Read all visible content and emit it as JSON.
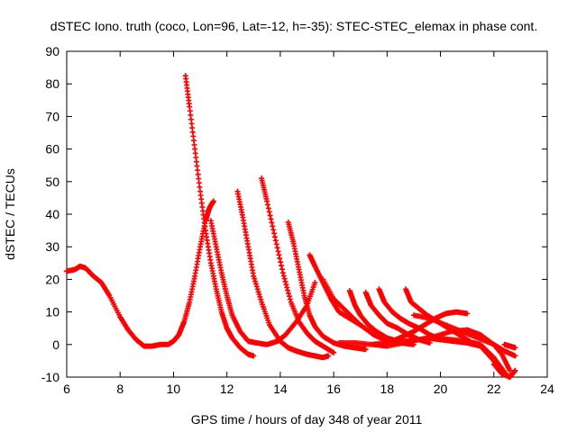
{
  "chart_data": {
    "type": "scatter",
    "title": "dSTEC Iono. truth (coco, Lon=96, Lat=-12, h=-35): STEC-STEC_elemax in phase cont.",
    "xlabel": "GPS time / hours of day 348 of year 2011",
    "ylabel": "dSTEC  / TECUs",
    "xlim": [
      6,
      24
    ],
    "ylim": [
      -10,
      90
    ],
    "xticks": [
      "6",
      "8",
      "10",
      "12",
      "14",
      "16",
      "18",
      "20",
      "22",
      "24"
    ],
    "yticks": [
      "-10",
      "0",
      "10",
      "20",
      "30",
      "40",
      "50",
      "60",
      "70",
      "80",
      "90"
    ],
    "grid": false,
    "legend": "none",
    "marker": "plus",
    "series_color": "#ff0000",
    "series": [
      {
        "x": [
          6.0,
          6.3,
          6.5,
          6.7,
          7.0,
          7.3,
          7.6,
          8.0,
          8.3,
          8.6,
          8.9,
          9.2,
          9.5,
          9.8,
          10.0,
          10.2,
          10.4,
          10.6,
          10.8,
          11.0,
          11.2,
          11.35,
          11.5
        ],
        "y": [
          22.5,
          23,
          24,
          23.5,
          21,
          19,
          15,
          8.5,
          4.5,
          1.5,
          -0.5,
          -0.5,
          0,
          0,
          1,
          3,
          7,
          13,
          21,
          30,
          38,
          42,
          44
        ]
      },
      {
        "x": [
          10.45,
          10.6,
          10.8,
          11.0,
          11.2,
          11.4,
          11.6,
          11.8,
          12.0,
          12.2,
          12.5,
          12.8,
          13.0
        ],
        "y": [
          82.5,
          73,
          60,
          47,
          35,
          25,
          17,
          10,
          5,
          2,
          -1,
          -3,
          -3.5
        ]
      },
      {
        "x": [
          11.4,
          11.6,
          11.8,
          12.0,
          12.2,
          12.5,
          12.8,
          13.1,
          13.5,
          13.9,
          14.2,
          14.6,
          15.0,
          15.3
        ],
        "y": [
          38,
          30,
          22,
          15,
          9,
          4,
          1,
          0.5,
          0,
          1,
          3,
          7,
          12,
          19
        ]
      },
      {
        "x": [
          12.4,
          12.6,
          12.8,
          13.0,
          13.3,
          13.6,
          14.0,
          14.3,
          14.6,
          15.0,
          15.3,
          15.6,
          15.8
        ],
        "y": [
          47,
          39,
          30,
          21,
          13,
          6,
          1,
          -1,
          -2,
          -3,
          -3.5,
          -4,
          -3.5
        ]
      },
      {
        "x": [
          13.3,
          13.5,
          13.8,
          14.1,
          14.4,
          14.7,
          15.0,
          15.3,
          15.6,
          16.0
        ],
        "y": [
          51,
          44,
          33,
          22,
          13,
          7,
          3.5,
          1,
          -0.5,
          -2.5
        ]
      },
      {
        "x": [
          14.3,
          14.5,
          14.7,
          14.9,
          15.1,
          15.3,
          15.6,
          16.0,
          16.4,
          16.8,
          17.2
        ],
        "y": [
          37.5,
          31,
          23,
          15,
          9,
          5.5,
          2.5,
          0.5,
          -0.5,
          -1,
          -1.5
        ]
      },
      {
        "x": [
          15.1,
          15.3,
          15.6,
          15.9,
          16.2,
          16.6,
          17.0,
          17.5,
          18.0
        ],
        "y": [
          27.5,
          24,
          19,
          14,
          10,
          8,
          6,
          3,
          1
        ]
      },
      {
        "x": [
          15.6,
          16.0,
          16.5,
          17.0,
          17.5,
          18.0,
          18.5,
          19.0
        ],
        "y": [
          20,
          14,
          10,
          6,
          3,
          1.5,
          0.5,
          0
        ]
      },
      {
        "x": [
          16.6,
          16.8,
          17.0,
          17.3,
          17.6,
          18.0,
          18.4,
          18.8
        ],
        "y": [
          16.5,
          12,
          9,
          6,
          4,
          2,
          1,
          0.5
        ]
      },
      {
        "x": [
          17.2,
          17.4,
          17.7,
          18.0,
          18.4,
          18.8,
          19.2,
          19.6
        ],
        "y": [
          16,
          12,
          9,
          6.5,
          5,
          3,
          1.5,
          0.5
        ]
      },
      {
        "x": [
          17.7,
          17.9,
          18.2,
          18.5,
          18.8,
          19.2,
          19.6,
          20.0
        ],
        "y": [
          17,
          13,
          10,
          8,
          6.5,
          5,
          3,
          1.5
        ]
      },
      {
        "x": [
          18.7,
          18.9,
          19.2,
          19.5,
          19.9,
          20.3,
          20.7,
          21.1
        ],
        "y": [
          17,
          13,
          11,
          9,
          7,
          5,
          3,
          1
        ]
      },
      {
        "x": [
          18.2,
          18.6,
          19.0,
          19.4,
          19.8,
          20.2,
          20.6,
          21.0
        ],
        "y": [
          1,
          2.5,
          4,
          6,
          8,
          9.5,
          10,
          9.5
        ]
      },
      {
        "x": [
          16.2,
          16.8,
          17.4,
          18.0,
          18.6,
          19.2,
          19.8,
          20.4,
          21.0,
          21.5,
          22.0,
          22.3,
          22.6
        ],
        "y": [
          0.5,
          0.5,
          0,
          0.5,
          1,
          1.5,
          2.5,
          4,
          4.5,
          3,
          0,
          -3,
          -8
        ]
      },
      {
        "x": [
          17.5,
          18.0,
          18.6,
          19.2,
          19.8,
          20.4,
          21.0,
          21.5,
          22.0,
          22.4
        ],
        "y": [
          0,
          -0.5,
          0.5,
          1.5,
          2,
          1.5,
          1,
          0,
          -4,
          -8.5
        ]
      },
      {
        "x": [
          19.5,
          20.0,
          20.5,
          21.0,
          21.5,
          22.0,
          22.3,
          22.6
        ],
        "y": [
          2,
          1.5,
          1,
          0.5,
          -0.5,
          -5,
          -8.5,
          -10
        ]
      },
      {
        "x": [
          19.0,
          19.6,
          20.2,
          20.8,
          21.4,
          22.0,
          22.4,
          22.8
        ],
        "y": [
          9,
          8,
          6,
          4,
          2,
          0,
          -2,
          -3.5
        ]
      },
      {
        "x": [
          22.4,
          22.6,
          22.8
        ],
        "y": [
          0,
          -0.5,
          -1
        ]
      },
      {
        "x": [
          22.0,
          22.3,
          22.6,
          22.8
        ],
        "y": [
          -6,
          -9,
          -10,
          -8
        ]
      }
    ]
  }
}
